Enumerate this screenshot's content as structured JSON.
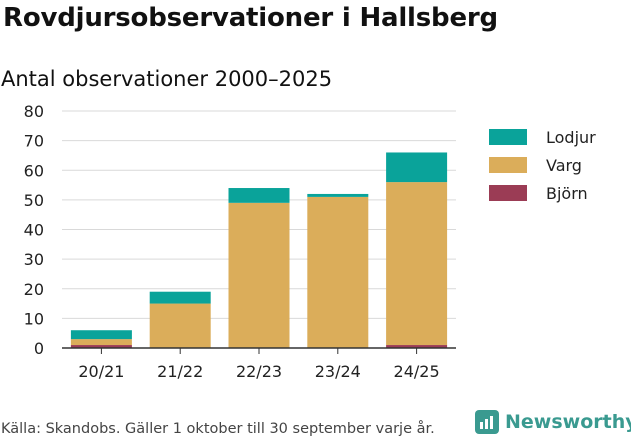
{
  "title": "Rovdjursobservationer i Hallsberg",
  "subtitle": "Antal observationer 2000–2025",
  "source": "Källa: Skandobs. Gäller 1 oktober till 30 september varje år.",
  "brand": "Newsworthy",
  "colors": {
    "Lodjur": "#0aa39a",
    "Varg": "#dbad5a",
    "Björn": "#9b3c55",
    "grid": "#d9d9d9",
    "axis": "#333333"
  },
  "chart_data": {
    "type": "bar",
    "stacked": true,
    "title": "Rovdjursobservationer i Hallsberg",
    "subtitle": "Antal observationer 2000–2025",
    "xlabel": "",
    "ylabel": "",
    "ylim": [
      0,
      80
    ],
    "yticks": [
      0,
      10,
      20,
      30,
      40,
      50,
      60,
      70,
      80
    ],
    "categories": [
      "20/21",
      "21/22",
      "22/23",
      "23/24",
      "24/25"
    ],
    "series": [
      {
        "name": "Björn",
        "values": [
          1,
          0,
          0,
          0,
          1
        ]
      },
      {
        "name": "Varg",
        "values": [
          2,
          15,
          49,
          51,
          55
        ]
      },
      {
        "name": "Lodjur",
        "values": [
          3,
          4,
          5,
          1,
          10
        ]
      }
    ],
    "legend": [
      "Lodjur",
      "Varg",
      "Björn"
    ],
    "legend_position": "right",
    "grid": true
  }
}
